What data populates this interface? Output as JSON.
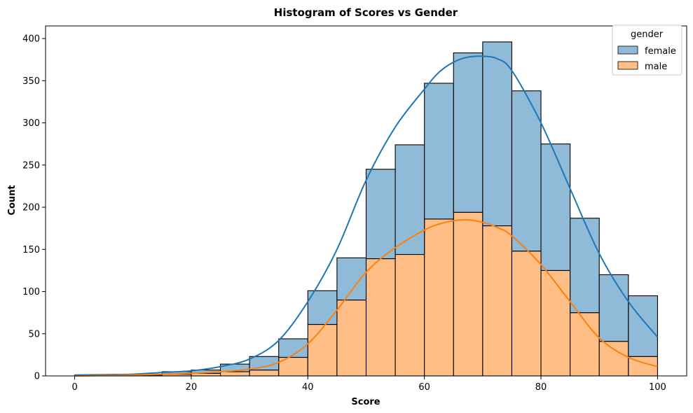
{
  "chart_data": {
    "type": "bar",
    "stacked": true,
    "title": "Histogram of Scores vs Gender",
    "xlabel": "Score",
    "ylabel": "Count",
    "xlim": [
      -5,
      105
    ],
    "ylim": [
      0,
      415
    ],
    "xticks": [
      0,
      20,
      40,
      60,
      80,
      100
    ],
    "yticks": [
      0,
      50,
      100,
      150,
      200,
      250,
      300,
      350,
      400
    ],
    "bin_edges": [
      0,
      5,
      10,
      15,
      20,
      25,
      30,
      35,
      40,
      45,
      50,
      55,
      60,
      65,
      70,
      75,
      80,
      85,
      90,
      95,
      100
    ],
    "series": [
      {
        "name": "male",
        "color": "#ffbe86",
        "line_color": "#ff7f0e",
        "values": [
          0,
          0,
          0,
          2,
          3,
          5,
          7,
          22,
          61,
          90,
          139,
          144,
          186,
          194,
          178,
          148,
          125,
          75,
          41,
          23
        ]
      },
      {
        "name": "female",
        "color": "#8fbbd9",
        "line_color": "#1f77b4",
        "values": [
          1,
          1,
          1,
          3,
          4,
          9,
          16,
          22,
          40,
          50,
          106,
          130,
          161,
          189,
          218,
          190,
          150,
          112,
          79,
          72
        ]
      }
    ],
    "kde": {
      "male": {
        "x": [
          0,
          5,
          10,
          15,
          20,
          25,
          30,
          35,
          40,
          45,
          50,
          55,
          60,
          62.5,
          65,
          67.5,
          70,
          72.5,
          75,
          80,
          85,
          90,
          95,
          100
        ],
        "y": [
          0,
          0.5,
          1,
          2,
          3,
          5,
          8,
          16,
          38,
          78,
          123,
          152,
          173,
          180,
          184,
          185,
          182,
          176,
          166,
          132,
          88,
          45,
          22,
          11
        ]
      },
      "female": {
        "x": [
          0,
          5,
          10,
          15,
          20,
          25,
          30,
          35,
          40,
          45,
          50,
          55,
          60,
          62.5,
          65,
          67.5,
          70,
          72.5,
          75,
          80,
          85,
          90,
          95,
          100
        ],
        "y": [
          1,
          1.5,
          2,
          4,
          6,
          11,
          20,
          42,
          88,
          150,
          232,
          295,
          340,
          360,
          372,
          378,
          379,
          376,
          362,
          300,
          222,
          145,
          88,
          46
        ]
      }
    },
    "legend": {
      "title": "gender",
      "position": "top-right",
      "entries": [
        "female",
        "male"
      ]
    }
  }
}
